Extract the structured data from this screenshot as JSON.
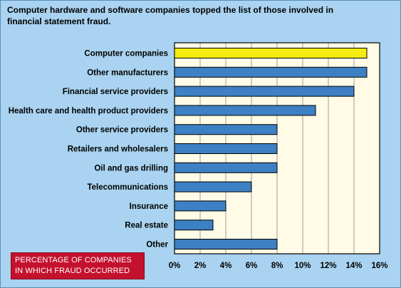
{
  "chart_data": {
    "type": "bar",
    "orientation": "horizontal",
    "title": "Computer hardware and software companies topped the list of those involved in\nfinancial statement fraud.",
    "categories": [
      "Computer companies",
      "Other manufacturers",
      "Financial service providers",
      "Health care and health product providers",
      "Other service providers",
      "Retailers and wholesalers",
      "Oil and gas drilling",
      "Telecommunications",
      "Insurance",
      "Real estate",
      "Other"
    ],
    "values": [
      15,
      15,
      14,
      11,
      8,
      8,
      8,
      6,
      4,
      3,
      8
    ],
    "unit": "%",
    "xlim": [
      0,
      16
    ],
    "xticks": [
      "0%",
      "2%",
      "4%",
      "6%",
      "8%",
      "10%",
      "12%",
      "14%",
      "16%"
    ],
    "grid": true,
    "highlight_category": "Computer companies",
    "caption": "PERCENTAGE OF COMPANIES\nIN WHICH FRAUD OCCURRED"
  },
  "colors": {
    "background": "#a9d3f0",
    "plot_background": "#fffbe6",
    "bar": "#3d80c4",
    "bar_highlight": "#f7ec0f",
    "bar_outline": "#000000",
    "grid": "#9c9c9c",
    "caption_background": "#c4112e",
    "caption_text": "#ffffff"
  }
}
